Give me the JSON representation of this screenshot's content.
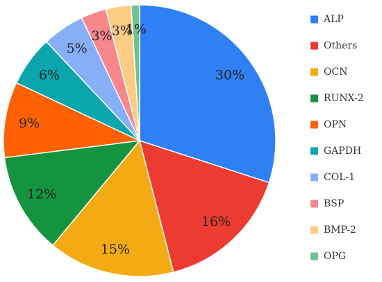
{
  "chart_data": {
    "type": "pie",
    "title": "",
    "legend_position": "right",
    "start_angle_deg": 0,
    "direction": "clockwise",
    "slices": [
      {
        "label": "ALP",
        "value": 30,
        "display": "30%",
        "color": "#2f7ff5"
      },
      {
        "label": "Others",
        "value": 16,
        "display": "16%",
        "color": "#ec3b30"
      },
      {
        "label": "OCN",
        "value": 15,
        "display": "15%",
        "color": "#f4aa12"
      },
      {
        "label": "RUNX-2",
        "value": 12,
        "display": "12%",
        "color": "#14943f"
      },
      {
        "label": "OPN",
        "value": 9,
        "display": "9%",
        "color": "#fd6104"
      },
      {
        "label": "GAPDH",
        "value": 6,
        "display": "6%",
        "color": "#0aa5ad"
      },
      {
        "label": "COL-1",
        "value": 5,
        "display": "5%",
        "color": "#86aff8"
      },
      {
        "label": "BSP",
        "value": 3,
        "display": "3%",
        "color": "#f6878c"
      },
      {
        "label": "BMP-2",
        "value": 3,
        "display": "3%",
        "color": "#fbcc84"
      },
      {
        "label": "OPG",
        "value": 1,
        "display": "1%",
        "color": "#6fc28f"
      }
    ]
  }
}
